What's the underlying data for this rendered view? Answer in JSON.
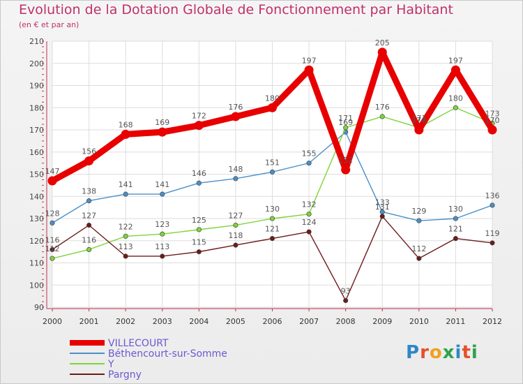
{
  "title": "Evolution de la Dotation Globale de Fonctionnement par Habitant",
  "subtitle": "(en € et par an)",
  "logo": {
    "text": "Proxiti",
    "letter_colors": [
      "#2f87c8",
      "#e5502a",
      "#f0a21c",
      "#2fa24a",
      "#2f87c8",
      "#e5502a",
      "#2fa24a"
    ]
  },
  "chart_data": {
    "type": "line",
    "title": "Evolution de la Dotation Globale de Fonctionnement par Habitant",
    "subtitle": "(en € et par an)",
    "xlabel": "",
    "ylabel": "",
    "ylim": [
      90,
      210
    ],
    "yticks": [
      90,
      100,
      110,
      120,
      130,
      140,
      150,
      160,
      170,
      180,
      190,
      200,
      210
    ],
    "grid": true,
    "legend_position": "bottom-left",
    "x": [
      "2000",
      "2001",
      "2002",
      "2003",
      "2004",
      "2005",
      "2006",
      "2007",
      "2008",
      "2009",
      "2010",
      "2011",
      "2012"
    ],
    "series": [
      {
        "name": "VILLECOURT",
        "color": "#e80000",
        "values": [
          147,
          156,
          168,
          169,
          172,
          176,
          180,
          197,
          152,
          205,
          170,
          197,
          170
        ]
      },
      {
        "name": "Béthencourt-sur-Somme",
        "color": "#4a90c8",
        "values": [
          128,
          138,
          141,
          141,
          146,
          148,
          151,
          155,
          169,
          133,
          129,
          130,
          136
        ]
      },
      {
        "name": "Y",
        "color": "#7ed43a",
        "values": [
          112,
          116,
          122,
          123,
          125,
          127,
          130,
          132,
          171,
          176,
          171,
          180,
          173
        ]
      },
      {
        "name": "Pargny",
        "color": "#6e1a1a",
        "values": [
          116,
          127,
          113,
          113,
          115,
          118,
          121,
          124,
          93,
          131,
          112,
          121,
          119
        ]
      }
    ]
  }
}
